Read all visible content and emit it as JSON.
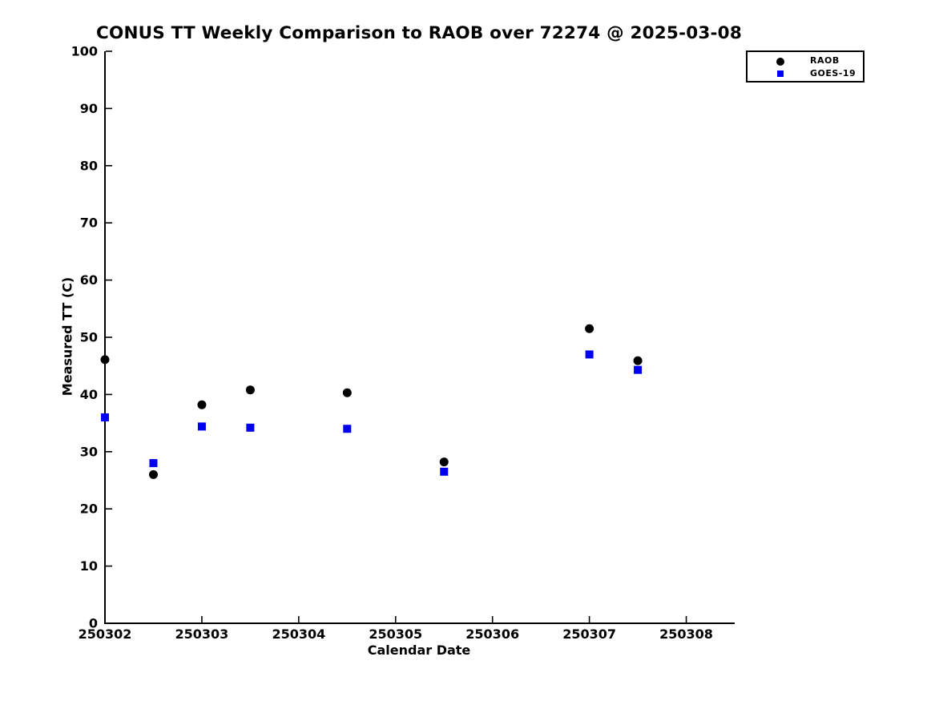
{
  "window": {
    "background": "#ffffff"
  },
  "chart_data": {
    "type": "scatter",
    "title": "CONUS TT Weekly Comparison to RAOB over 72274 @ 2025-03-08",
    "xlabel": "Calendar Date",
    "ylabel": "Measured TT (C)",
    "xlim": [
      250302,
      250308.5
    ],
    "ylim": [
      0,
      100
    ],
    "x_ticks": [
      250302,
      250303,
      250304,
      250305,
      250306,
      250307,
      250308
    ],
    "y_ticks": [
      0,
      10,
      20,
      30,
      40,
      50,
      60,
      70,
      80,
      90,
      100
    ],
    "grid": false,
    "legend_position": "top-right",
    "axis_color": "#000000",
    "series": [
      {
        "name": "RAOB",
        "marker": "circle",
        "color": "#000000",
        "x": [
          250302,
          250302.5,
          250303,
          250303.5,
          250304.5,
          250305.5,
          250307,
          250307.5
        ],
        "y": [
          46.1,
          26.0,
          38.2,
          40.8,
          40.3,
          28.2,
          51.5,
          45.9
        ]
      },
      {
        "name": "GOES-19",
        "marker": "square",
        "color": "#0000f0",
        "x": [
          250302,
          250302.5,
          250303,
          250303.5,
          250304.5,
          250305.5,
          250307,
          250307.5
        ],
        "y": [
          36.0,
          28.0,
          34.4,
          34.2,
          34.0,
          26.5,
          47.0,
          44.3
        ]
      }
    ]
  }
}
